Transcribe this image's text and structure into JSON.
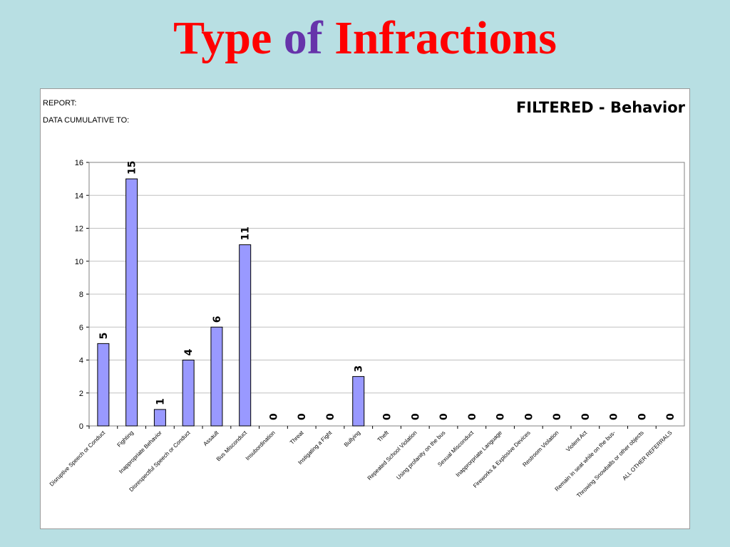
{
  "title": {
    "part1": "Type",
    "part2": "of",
    "part3": "Infractions"
  },
  "report": {
    "report_label": "REPORT:",
    "cumulative_label": "DATA CUMULATIVE TO:",
    "filter_title": "FILTERED - Behavior"
  },
  "colors": {
    "bar_fill": "#9999ff",
    "bar_stroke": "#000000",
    "title_red": "#ff0000",
    "title_purple": "#6633aa",
    "background": "#b8dfe3"
  },
  "chart_data": {
    "type": "bar",
    "title": "FILTERED - Behavior",
    "xlabel": "",
    "ylabel": "",
    "ylim": [
      0,
      16
    ],
    "yticks": [
      0,
      2,
      4,
      6,
      8,
      10,
      12,
      14,
      16
    ],
    "grid": true,
    "categories": [
      "Disruptive Speech or Conduct",
      "Fighting",
      "Inappropriate Behavior",
      "Disrespectful Speech or Conduct",
      "Assault",
      "Bus Misconduct",
      "Insubordination",
      "Threat",
      "Instigating a Fight",
      "Bullying",
      "Theft",
      "Repeated School Violation",
      "Using profanity on the bus",
      "Sexual Misconduct",
      "Inapprorpriate Language",
      "Fireworks & Explosive Devices",
      "Restroom Violation",
      "Violent Act",
      "Remain in seat while on the bus-",
      "Throwing Snowballs or other objects",
      "ALL OTHER REFERRALS"
    ],
    "values": [
      5,
      15,
      1,
      4,
      6,
      11,
      0,
      0,
      0,
      3,
      0,
      0,
      0,
      0,
      0,
      0,
      0,
      0,
      0,
      0,
      0
    ]
  }
}
